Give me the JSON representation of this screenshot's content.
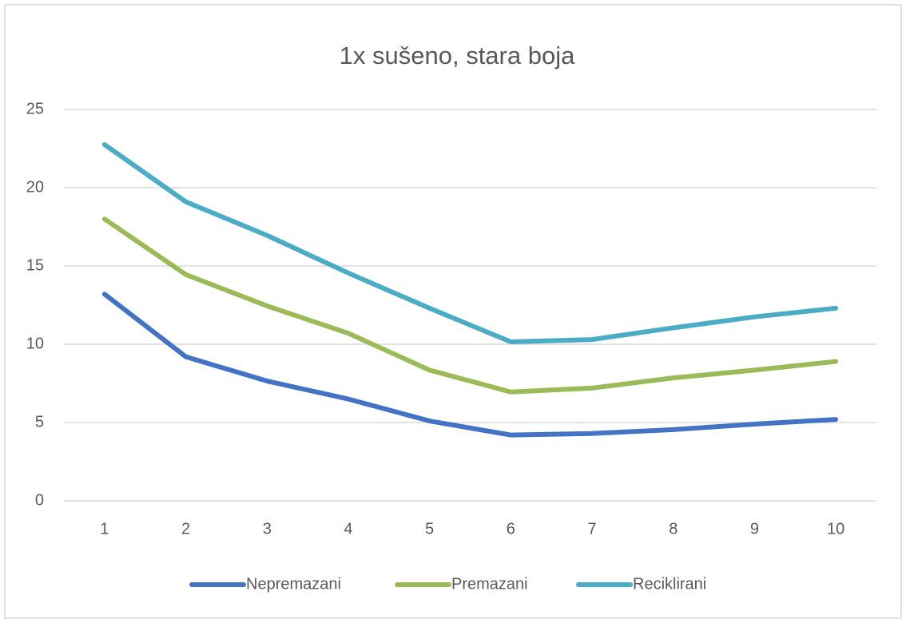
{
  "chart_data": {
    "type": "line",
    "title": "1x sušeno, stara boja",
    "categories": [
      "1",
      "2",
      "3",
      "4",
      "5",
      "6",
      "7",
      "8",
      "9",
      "10"
    ],
    "series": [
      {
        "name": "Nepremazani",
        "color": "#4472c4",
        "values": [
          13.2,
          9.2,
          7.65,
          6.5,
          5.1,
          4.2,
          4.3,
          4.55,
          4.9,
          5.2
        ]
      },
      {
        "name": "Premazani",
        "color": "#9bbb59",
        "values": [
          18.0,
          14.45,
          12.45,
          10.7,
          8.35,
          6.95,
          7.2,
          7.85,
          8.35,
          8.9
        ]
      },
      {
        "name": "Reciklirani",
        "color": "#4bacc6",
        "values": [
          22.75,
          19.1,
          16.95,
          14.55,
          12.3,
          10.15,
          10.3,
          11.05,
          11.75,
          12.3
        ]
      }
    ],
    "ylim": [
      0,
      25
    ],
    "yticks": [
      0,
      5,
      10,
      15,
      20,
      25
    ],
    "grid": true,
    "legend": "bottom"
  }
}
